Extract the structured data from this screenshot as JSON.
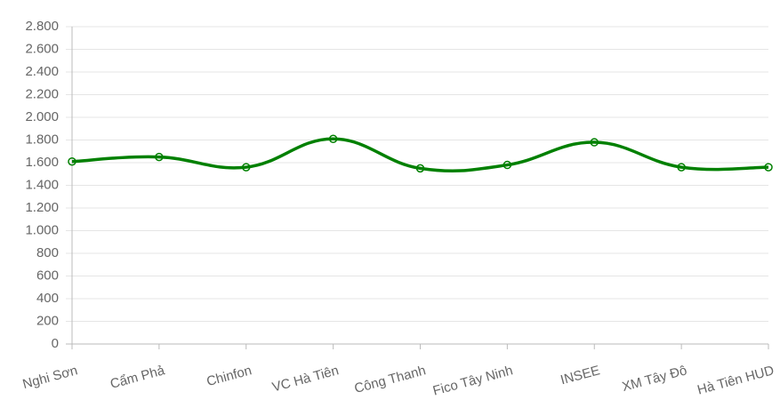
{
  "chart_data": {
    "type": "line",
    "categories": [
      "Nghi Sơn",
      "Cẩm Phả",
      "Chinfon",
      "VC Hà Tiên",
      "Công Thanh",
      "Fico Tây Ninh",
      "INSEE",
      "XM Tây Đô",
      "Hà Tiên HUD"
    ],
    "values": [
      1610,
      1650,
      1560,
      1810,
      1550,
      1580,
      1780,
      1560,
      1560
    ],
    "color": "#008000",
    "ylim": [
      0,
      2800
    ],
    "yticks": [
      0,
      200,
      400,
      600,
      800,
      {
        "value": 1000,
        "label": "1.000"
      },
      {
        "value": 1200,
        "label": "1.200"
      },
      {
        "value": 1400,
        "label": "1.400"
      },
      {
        "value": 1600,
        "label": "1.600"
      },
      {
        "value": 1800,
        "label": "1.800"
      },
      {
        "value": 2000,
        "label": "2.000"
      },
      {
        "value": 2200,
        "label": "2.200"
      },
      {
        "value": 2400,
        "label": "2.400"
      },
      {
        "value": 2600,
        "label": "2.600"
      },
      {
        "value": 2800,
        "label": "2.800"
      }
    ],
    "grid": true
  }
}
